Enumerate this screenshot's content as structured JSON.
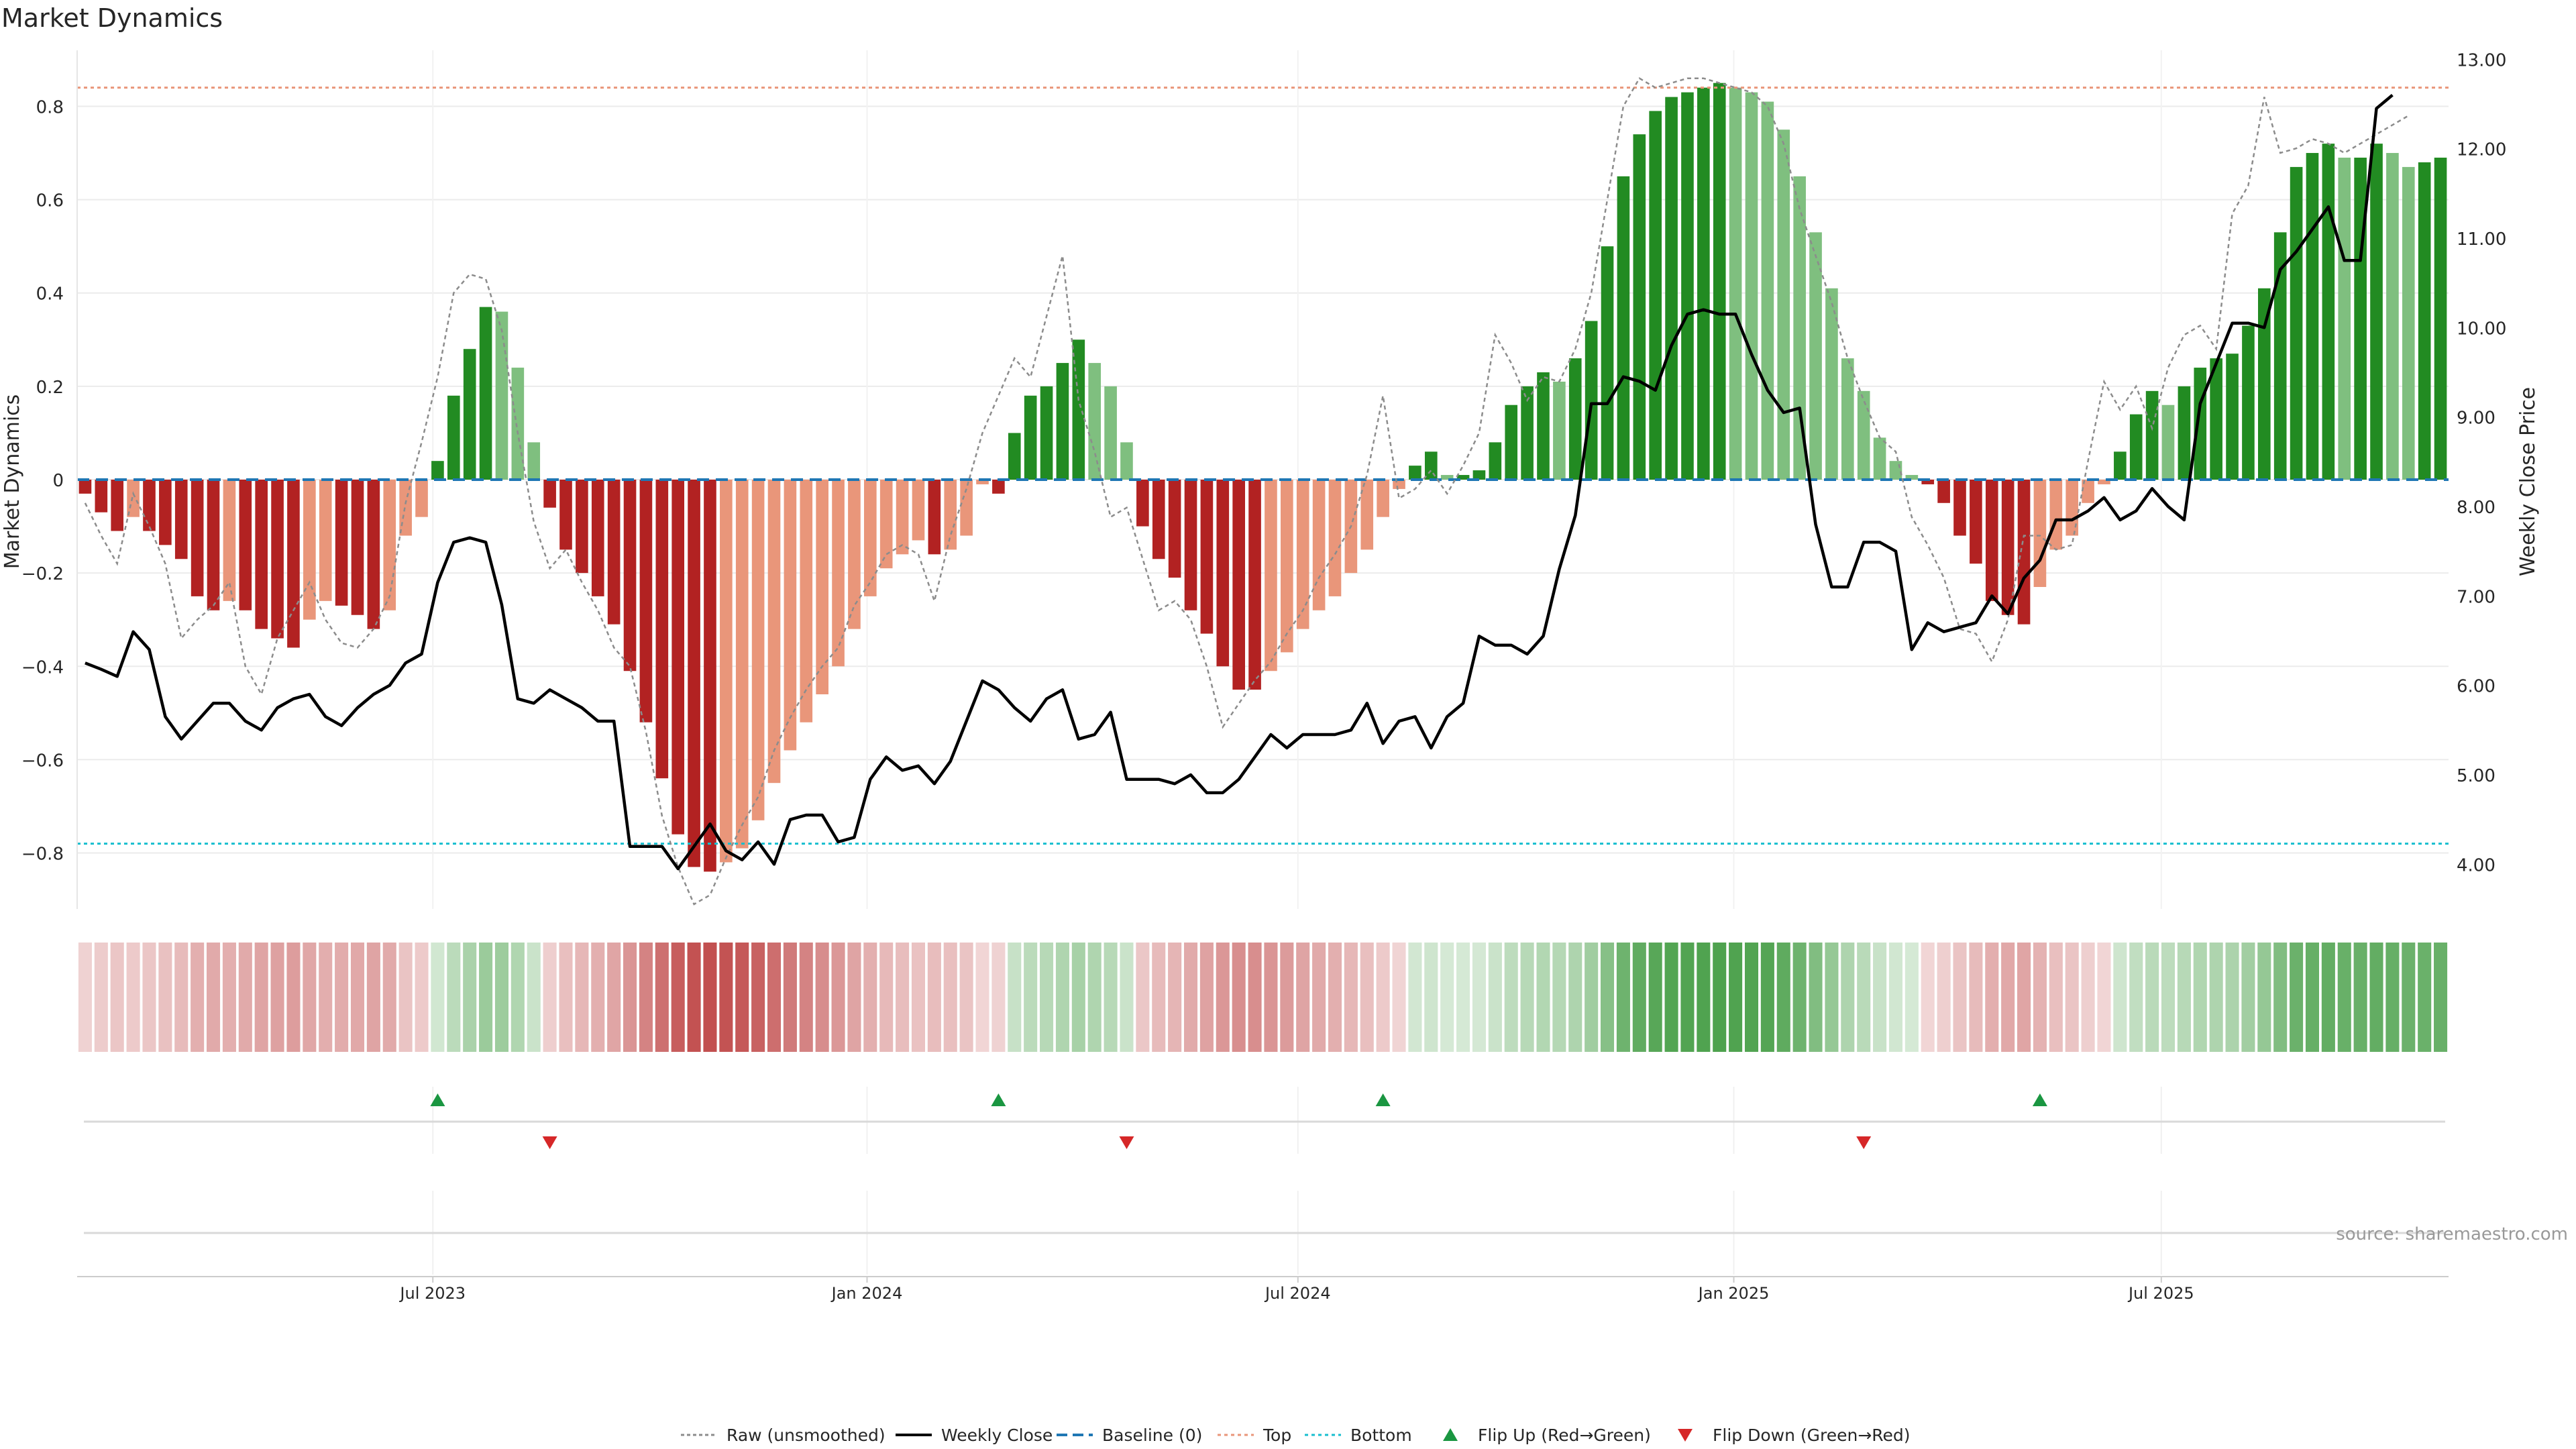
{
  "chart_data": {
    "type": "bar",
    "title": "Market Dynamics",
    "ylabel": "Market Dynamics",
    "y2label": "Weekly Close Price",
    "ylim": [
      -0.92,
      0.92
    ],
    "y2lim": [
      3.5,
      13.1
    ],
    "yticks": [
      -0.8,
      -0.6,
      -0.4,
      -0.2,
      0,
      0.2,
      0.4,
      0.6,
      0.8
    ],
    "yticklabels": [
      "−0.8",
      "−0.6",
      "−0.4",
      "−0.2",
      "0",
      "0.2",
      "0.4",
      "0.6",
      "0.8"
    ],
    "y2ticks": [
      4,
      5,
      6,
      7,
      8,
      9,
      10,
      11,
      12,
      13
    ],
    "y2ticklabels": [
      "4.00",
      "5.00",
      "6.00",
      "7.00",
      "8.00",
      "9.00",
      "10.00",
      "11.00",
      "12.00",
      "13.00"
    ],
    "top_level": 0.84,
    "bottom_level": -0.78,
    "xdomain": [
      0,
      142
    ],
    "xticks": [
      {
        "pos": 21.3,
        "label": "Jul 2023"
      },
      {
        "pos": 47.3,
        "label": "Jan 2024"
      },
      {
        "pos": 73.1,
        "label": "Jul 2024"
      },
      {
        "pos": 99.2,
        "label": "Jan 2025"
      },
      {
        "pos": 124.8,
        "label": "Jul 2025"
      }
    ],
    "values": [
      -0.03,
      -0.07,
      -0.11,
      -0.08,
      -0.11,
      -0.14,
      -0.17,
      -0.25,
      -0.28,
      -0.26,
      -0.28,
      -0.32,
      -0.34,
      -0.36,
      -0.3,
      -0.26,
      -0.27,
      -0.29,
      -0.32,
      -0.28,
      -0.12,
      -0.08,
      0.04,
      0.18,
      0.28,
      0.37,
      0.36,
      0.24,
      0.08,
      -0.06,
      -0.15,
      -0.2,
      -0.25,
      -0.31,
      -0.41,
      -0.52,
      -0.64,
      -0.76,
      -0.83,
      -0.84,
      -0.82,
      -0.79,
      -0.73,
      -0.65,
      -0.58,
      -0.52,
      -0.46,
      -0.4,
      -0.32,
      -0.25,
      -0.19,
      -0.16,
      -0.13,
      -0.16,
      -0.15,
      -0.12,
      -0.01,
      -0.03,
      0.1,
      0.18,
      0.2,
      0.25,
      0.3,
      0.25,
      0.2,
      0.08,
      -0.1,
      -0.17,
      -0.21,
      -0.28,
      -0.33,
      -0.4,
      -0.45,
      -0.45,
      -0.41,
      -0.37,
      -0.32,
      -0.28,
      -0.25,
      -0.2,
      -0.15,
      -0.08,
      -0.02,
      0.03,
      0.06,
      0.01,
      0.01,
      0.02,
      0.08,
      0.16,
      0.2,
      0.23,
      0.21,
      0.26,
      0.34,
      0.5,
      0.65,
      0.74,
      0.79,
      0.82,
      0.83,
      0.84,
      0.85,
      0.84,
      0.83,
      0.81,
      0.75,
      0.65,
      0.53,
      0.41,
      0.26,
      0.19,
      0.09,
      0.04,
      0.01,
      -0.01,
      -0.05,
      -0.12,
      -0.18,
      -0.26,
      -0.29,
      -0.31,
      -0.23,
      -0.15,
      -0.12,
      -0.05,
      -0.01,
      0.06,
      0.14,
      0.19,
      0.16,
      0.2,
      0.24,
      0.26,
      0.27,
      0.33,
      0.41,
      0.53,
      0.67,
      0.7,
      0.72,
      0.69,
      0.69,
      0.72,
      0.7,
      0.67,
      0.68,
      0.69
    ],
    "raw_values": [
      -0.05,
      -0.12,
      -0.18,
      -0.03,
      -0.1,
      -0.18,
      -0.34,
      -0.3,
      -0.27,
      -0.22,
      -0.4,
      -0.46,
      -0.34,
      -0.28,
      -0.22,
      -0.3,
      -0.35,
      -0.36,
      -0.32,
      -0.25,
      -0.05,
      0.08,
      0.22,
      0.4,
      0.44,
      0.43,
      0.32,
      0.1,
      -0.09,
      -0.19,
      -0.15,
      -0.22,
      -0.28,
      -0.36,
      -0.4,
      -0.54,
      -0.72,
      -0.83,
      -0.91,
      -0.89,
      -0.81,
      -0.74,
      -0.68,
      -0.58,
      -0.51,
      -0.45,
      -0.4,
      -0.36,
      -0.27,
      -0.22,
      -0.16,
      -0.14,
      -0.16,
      -0.26,
      -0.12,
      -0.02,
      0.1,
      0.18,
      0.26,
      0.22,
      0.35,
      0.48,
      0.17,
      0.06,
      -0.08,
      -0.06,
      -0.17,
      -0.28,
      -0.26,
      -0.3,
      -0.4,
      -0.53,
      -0.48,
      -0.43,
      -0.39,
      -0.33,
      -0.28,
      -0.21,
      -0.16,
      -0.1,
      0.01,
      0.18,
      -0.04,
      -0.02,
      0.02,
      -0.03,
      0.03,
      0.1,
      0.31,
      0.25,
      0.17,
      0.22,
      0.21,
      0.28,
      0.4,
      0.6,
      0.8,
      0.86,
      0.84,
      0.85,
      0.86,
      0.86,
      0.85,
      0.84,
      0.83,
      0.8,
      0.72,
      0.58,
      0.48,
      0.38,
      0.26,
      0.17,
      0.09,
      0.06,
      -0.08,
      -0.14,
      -0.21,
      -0.32,
      -0.33,
      -0.39,
      -0.3,
      -0.12,
      -0.12,
      -0.15,
      -0.14,
      0.04,
      0.21,
      0.15,
      0.2,
      0.11,
      0.24,
      0.31,
      0.33,
      0.28,
      0.57,
      0.63,
      0.82,
      0.7,
      0.71,
      0.73,
      0.72,
      0.7,
      0.72,
      0.74,
      0.76,
      0.78
    ],
    "weekly_close": [
      6.25,
      6.18,
      6.1,
      6.6,
      6.4,
      5.65,
      5.4,
      5.6,
      5.8,
      5.8,
      5.6,
      5.5,
      5.75,
      5.85,
      5.9,
      5.65,
      5.55,
      5.75,
      5.9,
      6.0,
      6.25,
      6.35,
      7.15,
      7.6,
      7.65,
      7.6,
      6.9,
      5.85,
      5.8,
      5.95,
      5.85,
      5.75,
      5.6,
      5.6,
      4.2,
      4.2,
      4.2,
      3.95,
      4.2,
      4.45,
      4.15,
      4.05,
      4.25,
      4.0,
      4.5,
      4.55,
      4.55,
      4.25,
      4.3,
      4.95,
      5.2,
      5.05,
      5.1,
      4.9,
      5.15,
      5.6,
      6.05,
      5.95,
      5.75,
      5.6,
      5.85,
      5.95,
      5.4,
      5.45,
      5.7,
      4.95,
      4.95,
      4.95,
      4.9,
      5.0,
      4.8,
      4.8,
      4.95,
      5.2,
      5.45,
      5.3,
      5.45,
      5.45,
      5.45,
      5.5,
      5.8,
      5.35,
      5.6,
      5.65,
      5.3,
      5.65,
      5.8,
      6.55,
      6.45,
      6.45,
      6.35,
      6.55,
      7.3,
      7.9,
      9.15,
      9.15,
      9.45,
      9.4,
      9.3,
      9.8,
      10.15,
      10.2,
      10.15,
      10.15,
      9.7,
      9.3,
      9.05,
      9.1,
      7.8,
      7.1,
      7.1,
      7.6,
      7.6,
      7.5,
      6.4,
      6.7,
      6.6,
      6.65,
      6.7,
      7.0,
      6.8,
      7.2,
      7.4,
      7.85,
      7.85,
      7.95,
      8.1,
      7.85,
      7.95,
      8.2,
      8.0,
      7.85,
      9.15,
      9.6,
      10.05,
      10.05,
      10.0,
      10.65,
      10.85,
      11.1,
      11.35,
      10.75,
      10.75,
      12.45,
      12.6
    ],
    "legend": {
      "position": "bottom-center",
      "entries": [
        "Raw (unsmoothed)",
        "Weekly Close",
        "Baseline (0)",
        "Top",
        "Bottom",
        "Flip Up (Red→Green)",
        "Flip Down (Green→Red)"
      ]
    },
    "flip_up_weeks": [
      22,
      57,
      81,
      122
    ],
    "flip_down_weeks": [
      29,
      65,
      111
    ],
    "colors": {
      "strong_green": "#228b22",
      "light_green": "#7fbf7f",
      "strong_red": "#b22222",
      "light_red": "#e9967a",
      "raw_line": "#8c8c8c",
      "close_line": "#000000",
      "baseline": "#1f77b4",
      "top_line": "#e9967a",
      "bottom_line": "#17becf",
      "flip_up": "#1a9641",
      "flip_down": "#d62728",
      "grid": "#ebebeb",
      "axis_text": "#262626",
      "source_text": "#999999"
    },
    "source": "source: sharemaestro.com"
  }
}
